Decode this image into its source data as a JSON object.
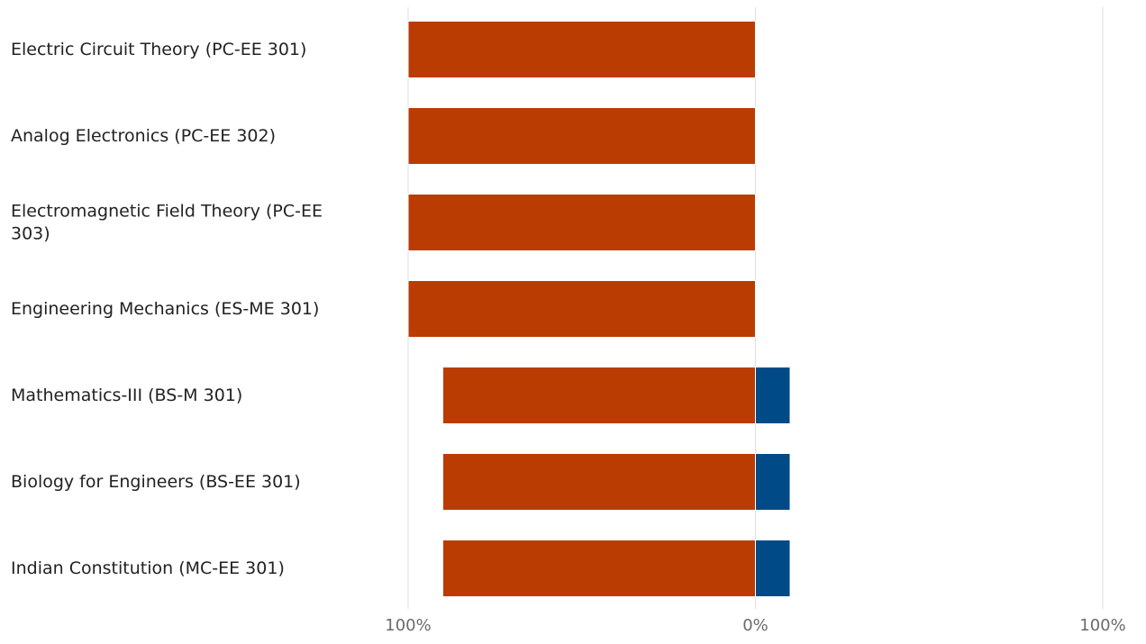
{
  "chart_data": {
    "type": "bar",
    "orientation": "horizontal",
    "stacked": "diverging",
    "title": "",
    "xlabel": "",
    "ylabel": "",
    "categories": [
      "Electric Circuit Theory (PC-EE 301)",
      "Analog Electronics (PC-EE 302)",
      "Electromagnetic Field Theory (PC-EE 303)",
      "Engineering Mechanics (ES-ME 301)",
      "Mathematics-III (BS-M 301)",
      "Biology for Engineers (BS-EE 301)",
      "Indian Constitution (MC-EE 301)"
    ],
    "category_lines": [
      [
        "Electric Circuit Theory (PC-EE 301)"
      ],
      [
        "Analog Electronics (PC-EE 302)"
      ],
      [
        "Electromagnetic Field Theory (PC-EE",
        "303)"
      ],
      [
        "Engineering Mechanics (ES-ME 301)"
      ],
      [
        "Mathematics-III (BS-M 301)"
      ],
      [
        "Biology for Engineers (BS-EE 301)"
      ],
      [
        "Indian Constitution (MC-EE 301)"
      ]
    ],
    "series": [
      {
        "side": "left",
        "color": "#bb3c03",
        "values": [
          100,
          100,
          100,
          100,
          90,
          90,
          90
        ]
      },
      {
        "side": "right",
        "color": "#004b87",
        "values": [
          0,
          0,
          0,
          0,
          10,
          10,
          10
        ]
      }
    ],
    "xlim": [
      -100,
      100
    ],
    "ticks": [
      {
        "value": -100,
        "label": "100%"
      },
      {
        "value": 0,
        "label": "0%"
      },
      {
        "value": 100,
        "label": "100%"
      }
    ],
    "grid": true,
    "legend": "none"
  }
}
